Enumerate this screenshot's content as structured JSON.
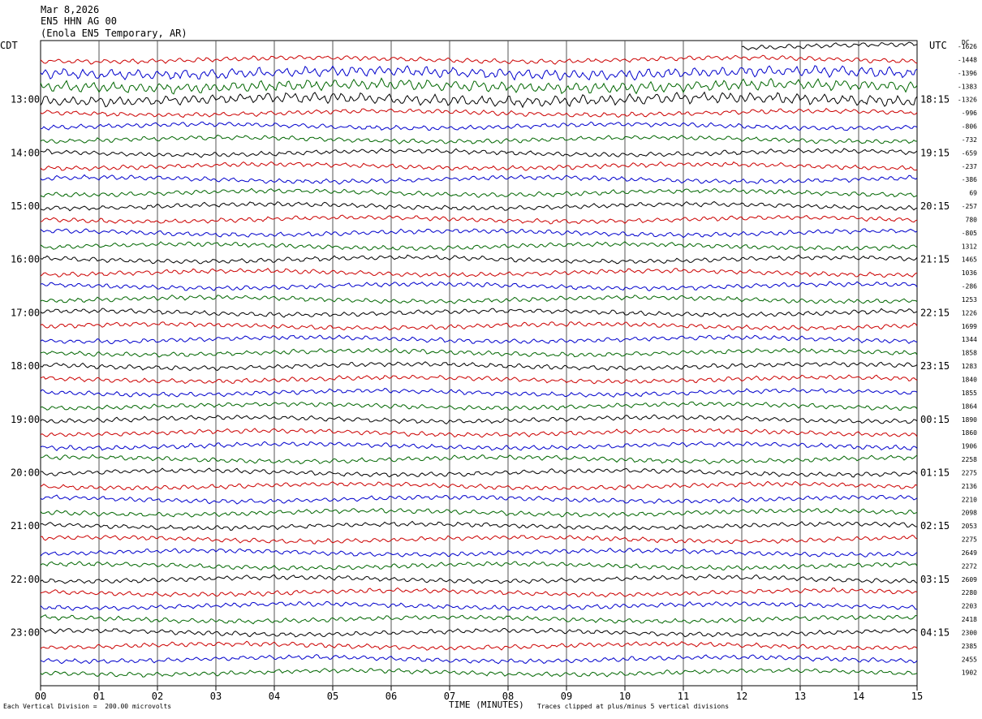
{
  "header": {
    "date": "Mar 8,2026",
    "station": "EN5 HHN AG 00",
    "location": "(Enola EN5 Temporary, AR)"
  },
  "axis_labels": {
    "left_zone": "CDT",
    "right_zone": "UTC",
    "dc": "DC"
  },
  "footer": {
    "left": "Each Vertical Division =  200.00 microvolts",
    "center": "TIME (MINUTES)",
    "right": "Traces clipped at plus/minus 5 vertical divisions"
  },
  "colors": {
    "trace_cycle": [
      "#000000",
      "#cc0000",
      "#0000cc",
      "#006600"
    ],
    "grid": "#555555"
  },
  "chart_data": {
    "type": "line",
    "x_ticks": [
      "00",
      "01",
      "02",
      "03",
      "04",
      "05",
      "06",
      "07",
      "08",
      "09",
      "10",
      "11",
      "12",
      "13",
      "14",
      "15"
    ],
    "x_range": [
      0,
      15
    ],
    "left_hour_labels": [
      "13:00",
      "14:00",
      "15:00",
      "16:00",
      "17:00",
      "18:00",
      "19:00",
      "20:00",
      "21:00",
      "22:00",
      "23:00"
    ],
    "right_hour_labels": [
      "18:15",
      "19:15",
      "20:15",
      "21:15",
      "22:15",
      "23:15",
      "00:15",
      "01:15",
      "02:15",
      "03:15",
      "04:15"
    ],
    "dc_offsets": [
      "-1626",
      "-1448",
      "-1396",
      "-1383",
      "-1326",
      "-996",
      "-806",
      "-732",
      "-659",
      "-237",
      "-386",
      "69",
      "-257",
      "780",
      "-805",
      "1312",
      "1465",
      "1036",
      "-286",
      "1253",
      "1226",
      "1699",
      "1344",
      "1858",
      "1283",
      "1840",
      "1855",
      "1864",
      "1890",
      "1860",
      "1906",
      "2258",
      "2275",
      "2136",
      "2210",
      "2098",
      "2053",
      "2275",
      "2649",
      "2272",
      "2609",
      "2280",
      "2203",
      "2418",
      "2300",
      "2385",
      "2455",
      "1902"
    ],
    "traces_per_hour": 4,
    "trace_count": 48
  }
}
